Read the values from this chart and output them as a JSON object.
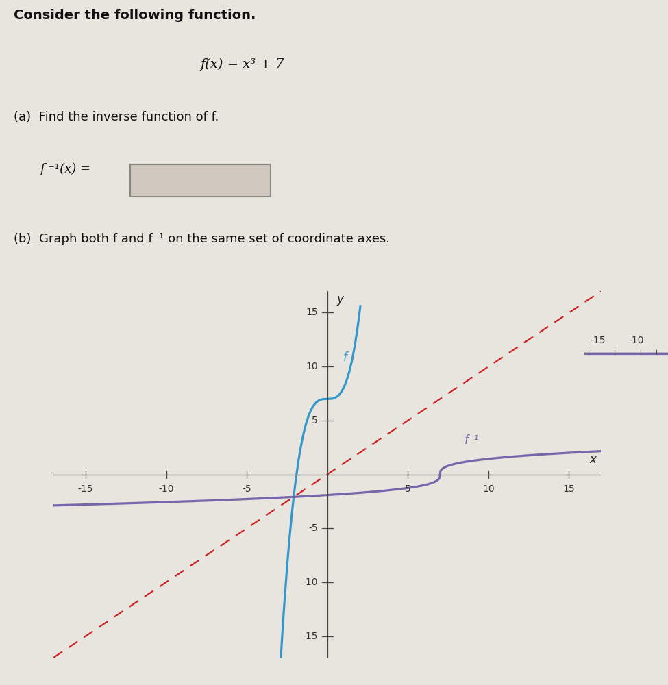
{
  "title_text": "Consider the following function.",
  "function_text": "f(x) = x³ + 7",
  "part_a_text": "(a)  Find the inverse function of f.",
  "part_b_text": "(b)  Graph both f and f⁻¹ on the same set of coordinate axes.",
  "inverse_label": "f ⁻¹(x) =",
  "xlim": [
    -17,
    17
  ],
  "ylim": [
    -17,
    17
  ],
  "xticks": [
    -15,
    -10,
    -5,
    5,
    10,
    15
  ],
  "yticks": [
    -15,
    -10,
    -5,
    5,
    10,
    15
  ],
  "f_color": "#3399CC",
  "f_inv_color": "#7766AA",
  "diag_color": "#CC2222",
  "f_label": "f",
  "f_inv_label": "f⁻¹",
  "bg_color": "#E8E4DE",
  "plot_bg_color": "#E8E4DE",
  "box_facecolor": "#D0C8BE",
  "box_edgecolor": "#888880",
  "text_color": "#111111",
  "axis_label_x": "x",
  "axis_label_y": "y",
  "extra_axis_ticks": [
    -15,
    -10
  ],
  "tick_fontsize": 10,
  "label_fontsize": 11
}
